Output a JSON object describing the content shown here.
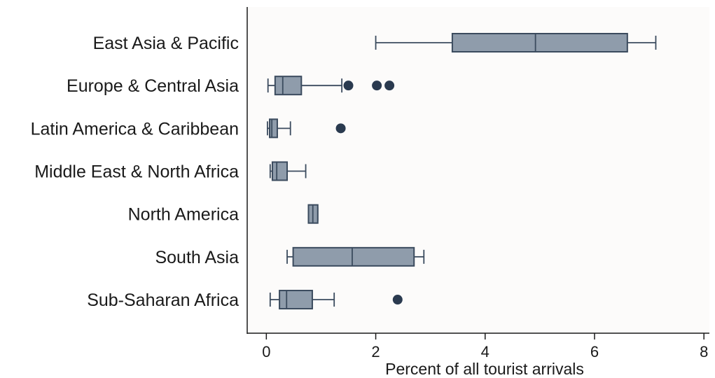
{
  "chart_data": {
    "type": "boxplot",
    "title": "",
    "xlabel": "Percent of all tourist arrivals",
    "ylabel": "",
    "xlim": [
      -0.35,
      8.1
    ],
    "xticks": [
      0,
      2,
      4,
      6,
      8
    ],
    "xtick_labels": [
      "0",
      "2",
      "4",
      "6",
      "8"
    ],
    "grid": false,
    "colors": {
      "box_fill": "#8f9cab",
      "box_stroke": "#3b4b5e",
      "outlier": "#2a3a4f",
      "plot_bg": "#fcfbfa"
    },
    "categories": [
      "East Asia & Pacific",
      "Europe & Central Asia",
      "Latin America & Caribbean",
      "Middle East & North Africa",
      "North America",
      "South Asia",
      "Sub-Saharan Africa"
    ],
    "boxes": [
      {
        "whisker_low": 2.0,
        "q1": 3.4,
        "median": 4.92,
        "q3": 6.6,
        "whisker_high": 7.12,
        "outliers": []
      },
      {
        "whisker_low": 0.03,
        "q1": 0.16,
        "median": 0.3,
        "q3": 0.64,
        "whisker_high": 1.38,
        "outliers": [
          1.5,
          2.02,
          2.25
        ]
      },
      {
        "whisker_low": 0.02,
        "q1": 0.06,
        "median": 0.1,
        "q3": 0.2,
        "whisker_high": 0.44,
        "outliers": [
          1.36
        ]
      },
      {
        "whisker_low": 0.07,
        "q1": 0.11,
        "median": 0.19,
        "q3": 0.38,
        "whisker_high": 0.72,
        "outliers": []
      },
      {
        "whisker_low": 0.77,
        "q1": 0.77,
        "median": 0.85,
        "q3": 0.94,
        "whisker_high": 0.94,
        "outliers": []
      },
      {
        "whisker_low": 0.38,
        "q1": 0.49,
        "median": 1.57,
        "q3": 2.7,
        "whisker_high": 2.88,
        "outliers": []
      },
      {
        "whisker_low": 0.07,
        "q1": 0.24,
        "median": 0.37,
        "q3": 0.84,
        "whisker_high": 1.24,
        "outliers": [
          2.4
        ]
      }
    ]
  }
}
